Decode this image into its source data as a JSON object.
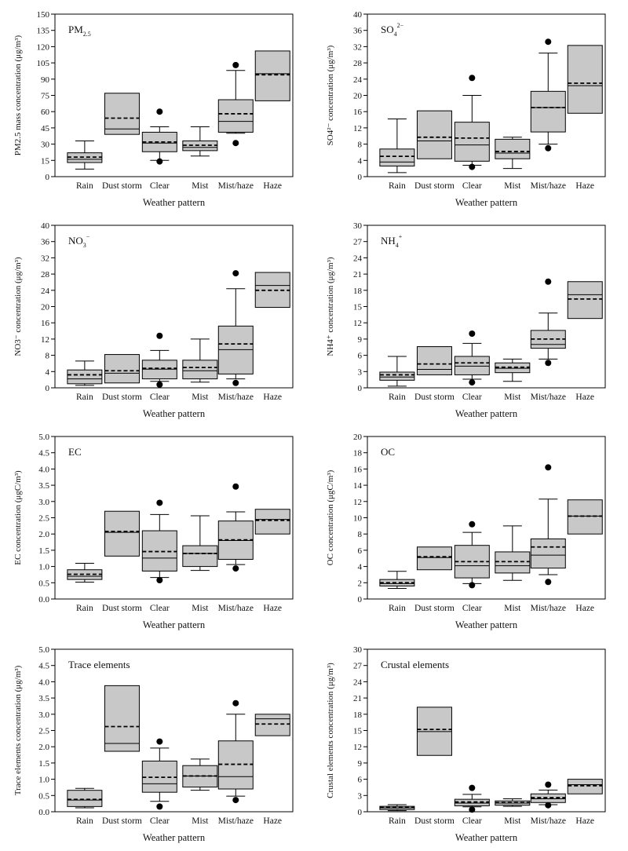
{
  "chart_data": [
    {
      "type": "box",
      "title": "PM",
      "title_sub": "2.5",
      "title_sup": "",
      "ylabel": "PM2.5 mass concentration (μg/m³)",
      "xlabel": "Weather pattern",
      "ylim": [
        0,
        150
      ],
      "yticks": [
        0,
        15,
        30,
        45,
        60,
        75,
        90,
        105,
        120,
        135,
        150
      ],
      "categories": [
        "Rain",
        "Dust storm",
        "Clear",
        "Mist",
        "Mist/haze",
        "Haze"
      ],
      "boxes": [
        {
          "whislo": 7,
          "q1": 13,
          "med": 16,
          "mean": 18,
          "q3": 22,
          "whishi": 33,
          "fliers": []
        },
        {
          "q1": 39,
          "med": 44,
          "mean": 54,
          "q3": 77,
          "fliers": []
        },
        {
          "whislo": 15,
          "q1": 23,
          "med": 31,
          "mean": 32,
          "q3": 41,
          "whishi": 46,
          "fliers": [
            60,
            14
          ]
        },
        {
          "whislo": 19,
          "q1": 24,
          "med": 27,
          "mean": 29,
          "q3": 33,
          "whishi": 46,
          "fliers": []
        },
        {
          "whislo": 40,
          "q1": 41,
          "med": 51,
          "mean": 58,
          "q3": 71,
          "whishi": 98,
          "fliers": [
            103,
            31
          ]
        },
        {
          "q1": 70,
          "med": 95,
          "mean": 94,
          "q3": 116,
          "fliers": []
        }
      ]
    },
    {
      "type": "box",
      "title": "SO",
      "title_sub": "4",
      "title_sup": "2−",
      "ylabel": "SO4²⁻ concentration (μg/m³)",
      "xlabel": "Weather pattern",
      "ylim": [
        0,
        40
      ],
      "yticks": [
        0,
        4,
        8,
        12,
        16,
        20,
        24,
        28,
        32,
        36,
        40
      ],
      "categories": [
        "Rain",
        "Dust storm",
        "Clear",
        "Mist",
        "Mist/haze",
        "Haze"
      ],
      "boxes": [
        {
          "whislo": 1,
          "q1": 2.6,
          "med": 3.6,
          "mean": 5,
          "q3": 6.8,
          "whishi": 14.2,
          "fliers": []
        },
        {
          "q1": 4.4,
          "med": 8.8,
          "mean": 9.7,
          "q3": 16.2,
          "fliers": []
        },
        {
          "whislo": 2.8,
          "q1": 3.8,
          "med": 7.8,
          "mean": 9.5,
          "q3": 13.4,
          "whishi": 20,
          "fliers": [
            24.3,
            2.4
          ]
        },
        {
          "whislo": 2,
          "q1": 4.4,
          "med": 5.8,
          "mean": 6.2,
          "q3": 9.2,
          "whishi": 9.7,
          "fliers": []
        },
        {
          "whislo": 8,
          "q1": 11,
          "med": 17,
          "mean": 17,
          "q3": 21,
          "whishi": 30.4,
          "fliers": [
            33.2,
            7
          ]
        },
        {
          "q1": 15.6,
          "med": 22.4,
          "mean": 23,
          "q3": 32.3,
          "fliers": []
        }
      ]
    },
    {
      "type": "box",
      "title": "NO",
      "title_sub": "3",
      "title_sup": "−",
      "ylabel": "NO3⁻ concentration (μg/m³)",
      "xlabel": "Weather pattern",
      "ylim": [
        0,
        40
      ],
      "yticks": [
        0,
        4,
        8,
        12,
        16,
        20,
        24,
        28,
        32,
        36,
        40
      ],
      "categories": [
        "Rain",
        "Dust storm",
        "Clear",
        "Mist",
        "Mist/haze",
        "Haze"
      ],
      "boxes": [
        {
          "whislo": 0.6,
          "q1": 1,
          "med": 2.2,
          "mean": 3.2,
          "q3": 4.4,
          "whishi": 6.6,
          "fliers": []
        },
        {
          "q1": 1.2,
          "med": 3.6,
          "mean": 4.2,
          "q3": 8.2,
          "fliers": []
        },
        {
          "whislo": 1.6,
          "q1": 2.2,
          "med": 4.6,
          "mean": 4.8,
          "q3": 6.8,
          "whishi": 9.2,
          "fliers": [
            12.8,
            0.8
          ]
        },
        {
          "whislo": 1.4,
          "q1": 2.2,
          "med": 4.2,
          "mean": 5,
          "q3": 6.8,
          "whishi": 12,
          "fliers": []
        },
        {
          "whislo": 2.2,
          "q1": 3.4,
          "med": 9.4,
          "mean": 10.8,
          "q3": 15.2,
          "whishi": 24.4,
          "fliers": [
            28.2,
            1.2
          ]
        },
        {
          "q1": 19.8,
          "med": 25.2,
          "mean": 24,
          "q3": 28.4,
          "fliers": []
        }
      ]
    },
    {
      "type": "box",
      "title": "NH",
      "title_sub": "4",
      "title_sup": "+",
      "ylabel": "NH4⁺ concentration (μg/m³)",
      "xlabel": "Weather pattern",
      "ylim": [
        0,
        30
      ],
      "yticks": [
        0,
        3,
        6,
        9,
        12,
        15,
        18,
        21,
        24,
        27,
        30
      ],
      "categories": [
        "Rain",
        "Dust storm",
        "Clear",
        "Mist",
        "Mist/haze",
        "Haze"
      ],
      "boxes": [
        {
          "whislo": 0.3,
          "q1": 1.4,
          "med": 2,
          "mean": 2.4,
          "q3": 2.9,
          "whishi": 5.8,
          "fliers": []
        },
        {
          "q1": 2.4,
          "med": 3.4,
          "mean": 4.4,
          "q3": 7.6,
          "fliers": []
        },
        {
          "whislo": 1.6,
          "q1": 2.4,
          "med": 4,
          "mean": 4.6,
          "q3": 5.8,
          "whishi": 8.2,
          "fliers": [
            10,
            1
          ]
        },
        {
          "whislo": 1.2,
          "q1": 2.8,
          "med": 3.6,
          "mean": 3.8,
          "q3": 4.6,
          "whishi": 5.3,
          "fliers": []
        },
        {
          "whislo": 5.3,
          "q1": 7.3,
          "med": 8,
          "mean": 9,
          "q3": 10.6,
          "whishi": 13.8,
          "fliers": [
            19.6,
            4.6
          ]
        },
        {
          "q1": 12.8,
          "med": 17.2,
          "mean": 16.4,
          "q3": 19.6,
          "fliers": []
        }
      ]
    },
    {
      "type": "box",
      "title": "EC",
      "title_sub": "",
      "title_sup": "",
      "ylabel": "EC concentration (μgC/m³)",
      "xlabel": "Weather pattern",
      "ylim": [
        0,
        5
      ],
      "yticks": [
        0.0,
        0.5,
        1.0,
        1.5,
        2.0,
        2.5,
        3.0,
        3.5,
        4.0,
        4.5,
        5.0
      ],
      "tick_decimals": 1,
      "categories": [
        "Rain",
        "Dust storm",
        "Clear",
        "Mist",
        "Mist/haze",
        "Haze"
      ],
      "boxes": [
        {
          "whislo": 0.52,
          "q1": 0.6,
          "med": 0.7,
          "mean": 0.76,
          "q3": 0.9,
          "whishi": 1.1,
          "fliers": []
        },
        {
          "q1": 1.32,
          "med": 2.05,
          "mean": 2.08,
          "q3": 2.7,
          "fliers": []
        },
        {
          "whislo": 0.66,
          "q1": 0.86,
          "med": 1.26,
          "mean": 1.46,
          "q3": 2.1,
          "whishi": 2.6,
          "fliers": [
            2.96,
            0.58
          ]
        },
        {
          "whislo": 0.88,
          "q1": 1.0,
          "med": 1.4,
          "mean": 1.4,
          "q3": 1.64,
          "whishi": 2.56,
          "fliers": []
        },
        {
          "whislo": 1.06,
          "q1": 1.22,
          "med": 1.8,
          "mean": 1.82,
          "q3": 2.4,
          "whishi": 2.68,
          "fliers": [
            3.46,
            0.94
          ]
        },
        {
          "q1": 2.0,
          "med": 2.45,
          "mean": 2.42,
          "q3": 2.76,
          "fliers": []
        }
      ]
    },
    {
      "type": "box",
      "title": "OC",
      "title_sub": "",
      "title_sup": "",
      "ylabel": "OC concentration (μgC/m³)",
      "xlabel": "Weather pattern",
      "ylim": [
        0,
        20
      ],
      "yticks": [
        0,
        2,
        4,
        6,
        8,
        10,
        12,
        14,
        16,
        18,
        20
      ],
      "categories": [
        "Rain",
        "Dust storm",
        "Clear",
        "Mist",
        "Mist/haze",
        "Haze"
      ],
      "boxes": [
        {
          "whislo": 1.3,
          "q1": 1.6,
          "med": 1.9,
          "mean": 2,
          "q3": 2.4,
          "whishi": 3.4,
          "fliers": []
        },
        {
          "q1": 3.6,
          "med": 5.1,
          "mean": 5.2,
          "q3": 6.4,
          "fliers": []
        },
        {
          "whislo": 1.9,
          "q1": 2.6,
          "med": 4.1,
          "mean": 4.6,
          "q3": 6.6,
          "whishi": 8.2,
          "fliers": [
            9.2,
            1.7
          ]
        },
        {
          "whislo": 2.3,
          "q1": 3.2,
          "med": 4.1,
          "mean": 4.6,
          "q3": 5.8,
          "whishi": 9,
          "fliers": []
        },
        {
          "whislo": 3,
          "q1": 3.8,
          "med": 5.4,
          "mean": 6.4,
          "q3": 7.4,
          "whishi": 12.3,
          "fliers": [
            16.2,
            2.1
          ]
        },
        {
          "q1": 8,
          "med": 10.2,
          "mean": 10.2,
          "q3": 12.2,
          "fliers": []
        }
      ]
    },
    {
      "type": "box",
      "title": "Trace elements",
      "title_sub": "",
      "title_sup": "",
      "ylabel": "Trace elements concentration (μg/m³)",
      "xlabel": "Weather pattern",
      "ylim": [
        0,
        5
      ],
      "yticks": [
        0.0,
        0.5,
        1.0,
        1.5,
        2.0,
        2.5,
        3.0,
        3.5,
        4.0,
        4.5,
        5.0
      ],
      "tick_decimals": 1,
      "categories": [
        "Rain",
        "Dust storm",
        "Clear",
        "Mist",
        "Mist/haze",
        "Haze"
      ],
      "boxes": [
        {
          "whislo": 0.12,
          "q1": 0.16,
          "med": 0.36,
          "mean": 0.38,
          "q3": 0.66,
          "whishi": 0.72,
          "fliers": []
        },
        {
          "q1": 1.86,
          "med": 2.1,
          "mean": 2.62,
          "q3": 3.88,
          "fliers": []
        },
        {
          "whislo": 0.32,
          "q1": 0.6,
          "med": 0.86,
          "mean": 1.06,
          "q3": 1.56,
          "whishi": 1.96,
          "fliers": [
            2.16,
            0.16
          ]
        },
        {
          "whislo": 0.66,
          "q1": 0.76,
          "med": 1.1,
          "mean": 1.1,
          "q3": 1.42,
          "whishi": 1.62,
          "fliers": []
        },
        {
          "whislo": 0.48,
          "q1": 0.7,
          "med": 1.08,
          "mean": 1.46,
          "q3": 2.18,
          "whishi": 3.0,
          "fliers": [
            3.34,
            0.36
          ]
        },
        {
          "q1": 2.34,
          "med": 2.86,
          "mean": 2.7,
          "q3": 3.0,
          "fliers": []
        }
      ]
    },
    {
      "type": "box",
      "title": "Crustal elements",
      "title_sub": "",
      "title_sup": "",
      "ylabel": "Crustal elements concentration (μg/m³)",
      "xlabel": "Weather pattern",
      "ylim": [
        0,
        30
      ],
      "yticks": [
        0,
        3,
        6,
        9,
        12,
        15,
        18,
        21,
        24,
        27,
        30
      ],
      "categories": [
        "Rain",
        "Dust storm",
        "Clear",
        "Mist",
        "Mist/haze",
        "Haze"
      ],
      "boxes": [
        {
          "whislo": 0.2,
          "q1": 0.4,
          "med": 0.7,
          "mean": 0.8,
          "q3": 1.0,
          "whishi": 1.3,
          "fliers": []
        },
        {
          "q1": 10.4,
          "med": 14.8,
          "mean": 15.2,
          "q3": 19.3,
          "fliers": []
        },
        {
          "whislo": 0.9,
          "q1": 1.1,
          "med": 1.6,
          "mean": 1.8,
          "q3": 2.3,
          "whishi": 3.2,
          "fliers": [
            4.4,
            0.4
          ]
        },
        {
          "whislo": 1.0,
          "q1": 1.2,
          "med": 1.6,
          "mean": 1.7,
          "q3": 2.0,
          "whishi": 2.4,
          "fliers": []
        },
        {
          "whislo": 1.3,
          "q1": 1.7,
          "med": 2.4,
          "mean": 2.6,
          "q3": 3.3,
          "whishi": 4.0,
          "fliers": [
            5.0,
            1.2
          ]
        },
        {
          "q1": 3.3,
          "med": 5.0,
          "mean": 4.8,
          "q3": 6.0,
          "fliers": []
        }
      ]
    }
  ]
}
